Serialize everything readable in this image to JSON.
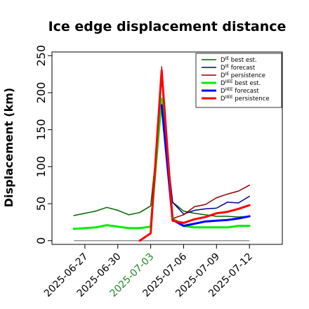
{
  "chart_data": {
    "type": "line",
    "title": "Ice edge displacement distance",
    "ylabel": "Displacement (km)",
    "xlabel": "",
    "ylim": [
      -5,
      255
    ],
    "yticks": [
      0,
      50,
      100,
      150,
      200,
      250
    ],
    "xlim": [
      "2025-06-24",
      "2025-07-15"
    ],
    "xticks": [
      "2025-06-27",
      "2025-06-30",
      "2025-07-03",
      "2025-07-06",
      "2025-07-09",
      "2025-07-12"
    ],
    "highlighted_xtick": "2025-07-03",
    "highlight_color": "#228B22",
    "grid": false,
    "legend_position": "top-right",
    "reference_line": {
      "y": 0,
      "x_start": "2025-06-26",
      "x_end": "2025-07-12",
      "color": "#808080"
    },
    "series": [
      {
        "name": "best est.",
        "sym": "D",
        "sup": "IE",
        "color": "#006400",
        "width": 1.5,
        "x": [
          "2025-06-26",
          "2025-06-27",
          "2025-06-28",
          "2025-06-29",
          "2025-06-30",
          "2025-07-01",
          "2025-07-02",
          "2025-07-03",
          "2025-07-04",
          "2025-07-05",
          "2025-07-06",
          "2025-07-07",
          "2025-07-08",
          "2025-07-09",
          "2025-07-10",
          "2025-07-11",
          "2025-07-12"
        ],
        "y": [
          34,
          37,
          40,
          45,
          41,
          35,
          38,
          47,
          190,
          52,
          40,
          37,
          35,
          33,
          33,
          32,
          33
        ]
      },
      {
        "name": "forecast",
        "sym": "D",
        "sup": "IE",
        "color": "#00008B",
        "width": 1.5,
        "x": [
          "2025-07-04",
          "2025-07-05",
          "2025-07-06",
          "2025-07-07",
          "2025-07-08",
          "2025-07-09",
          "2025-07-10",
          "2025-07-11",
          "2025-07-12"
        ],
        "y": [
          185,
          52,
          36,
          41,
          43,
          44,
          52,
          51,
          60
        ]
      },
      {
        "name": "persistence",
        "sym": "D",
        "sup": "IE",
        "color": "#8B0000",
        "width": 1.5,
        "x": [
          "2025-07-04",
          "2025-07-05",
          "2025-07-06",
          "2025-07-07",
          "2025-07-08",
          "2025-07-09",
          "2025-07-10",
          "2025-07-11",
          "2025-07-12"
        ],
        "y": [
          235,
          30,
          35,
          46,
          49,
          58,
          63,
          67,
          75
        ]
      },
      {
        "name": "best est.",
        "sym": "D",
        "sup": "IIEE",
        "color": "#00EE00",
        "width": 3,
        "x": [
          "2025-06-26",
          "2025-06-27",
          "2025-06-28",
          "2025-06-29",
          "2025-06-30",
          "2025-07-01",
          "2025-07-02",
          "2025-07-03",
          "2025-07-04",
          "2025-07-05",
          "2025-07-06",
          "2025-07-07",
          "2025-07-08",
          "2025-07-09",
          "2025-07-10",
          "2025-07-11",
          "2025-07-12"
        ],
        "y": [
          16,
          17,
          18,
          21,
          19,
          17,
          17,
          19,
          192,
          30,
          20,
          18,
          18,
          18,
          18,
          20,
          20
        ]
      },
      {
        "name": "forecast",
        "sym": "D",
        "sup": "IIEE",
        "color": "#0000FF",
        "width": 3,
        "x": [
          "2025-07-04",
          "2025-07-05",
          "2025-07-06",
          "2025-07-07",
          "2025-07-08",
          "2025-07-09",
          "2025-07-10",
          "2025-07-11",
          "2025-07-12"
        ],
        "y": [
          183,
          28,
          20,
          23,
          26,
          27,
          28,
          30,
          33
        ]
      },
      {
        "name": "persistence",
        "sym": "D",
        "sup": "IIEE",
        "color": "#FF0000",
        "width": 3,
        "x": [
          "2025-07-02",
          "2025-07-03",
          "2025-07-04",
          "2025-07-05",
          "2025-07-06",
          "2025-07-07",
          "2025-07-08",
          "2025-07-09",
          "2025-07-10",
          "2025-07-11",
          "2025-07-12"
        ],
        "y": [
          0,
          10,
          230,
          27,
          24,
          29,
          32,
          37,
          39,
          43,
          48
        ]
      }
    ]
  }
}
